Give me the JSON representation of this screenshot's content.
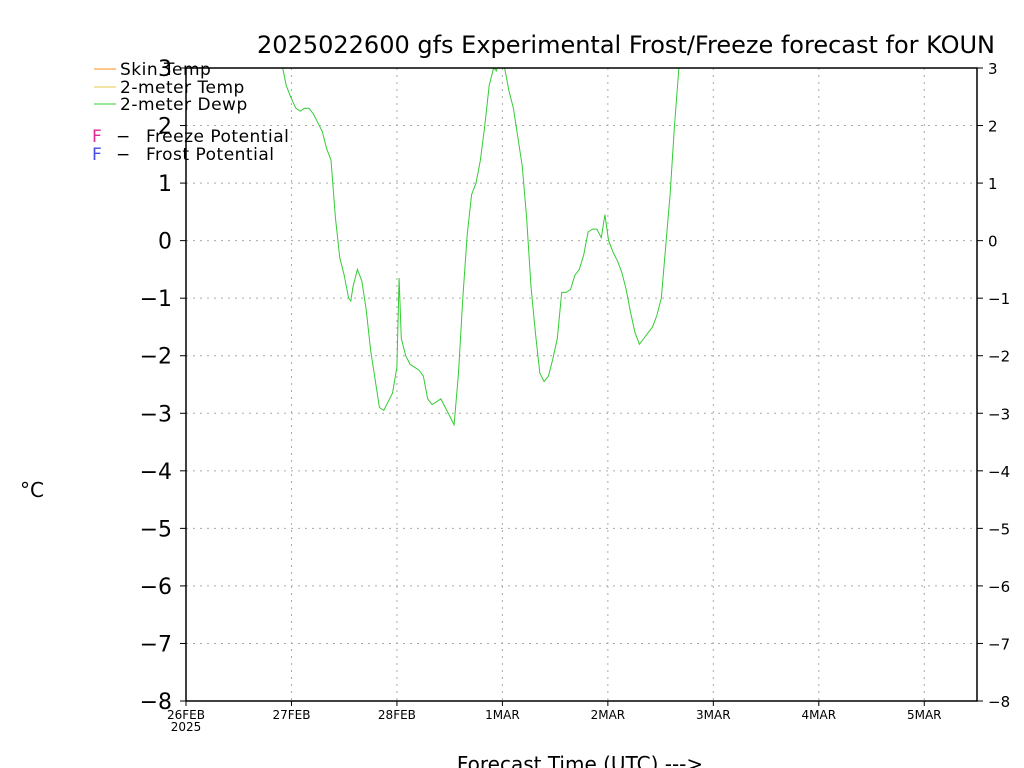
{
  "chart_data": {
    "type": "line",
    "title": "2025022600 gfs Experimental Frost/Freeze forecast for KOUN",
    "ylabel": "°C",
    "xlabel": "Forecast Time (UTC) --->",
    "ylim": [
      -8,
      3
    ],
    "xlim": [
      "2025-02-26T00",
      "2025-03-05T12"
    ],
    "grid": true,
    "legend_position": "top-left",
    "y_ticks": [
      -8,
      -7,
      -6,
      -5,
      -4,
      -3,
      -2,
      -1,
      0,
      1,
      2,
      3
    ],
    "y_tick_labels": [
      "−8",
      "−7",
      "−6",
      "−5",
      "−4",
      "−3",
      "−2",
      "−1",
      "0",
      "1",
      "2",
      "3"
    ],
    "x_ticks": [
      {
        "date": "2025-02-26",
        "label": "26FEB",
        "sublabel": "2025"
      },
      {
        "date": "2025-02-27",
        "label": "27FEB",
        "sublabel": ""
      },
      {
        "date": "2025-02-28",
        "label": "28FEB",
        "sublabel": ""
      },
      {
        "date": "2025-03-01",
        "label": "1MAR",
        "sublabel": ""
      },
      {
        "date": "2025-03-02",
        "label": "2MAR",
        "sublabel": ""
      },
      {
        "date": "2025-03-03",
        "label": "3MAR",
        "sublabel": ""
      },
      {
        "date": "2025-03-04",
        "label": "4MAR",
        "sublabel": ""
      },
      {
        "date": "2025-03-05",
        "label": "5MAR",
        "sublabel": ""
      }
    ],
    "legend": [
      {
        "label": "Skin Temp",
        "color": "#ff8c1a",
        "kind": "line"
      },
      {
        "label": "2-meter Temp",
        "color": "#e6c84a",
        "kind": "line"
      },
      {
        "label": "2-meter Dewp",
        "color": "#33cc33",
        "kind": "line"
      },
      {
        "label": "Freeze Potential",
        "marker": "F",
        "color": "#e0288e",
        "kind": "marker"
      },
      {
        "label": "Frost Potential",
        "marker": "F",
        "color": "#4a4ae6",
        "kind": "marker"
      }
    ],
    "series": [
      {
        "name": "2-meter Dewp",
        "color": "#33cc33",
        "points": [
          [
            "2025-02-26T22:00",
            3.0
          ],
          [
            "2025-02-26T22:48",
            2.7
          ],
          [
            "2025-02-26T23:48",
            2.5
          ],
          [
            "2025-02-27T01:00",
            2.3
          ],
          [
            "2025-02-27T02:00",
            2.25
          ],
          [
            "2025-02-27T03:00",
            2.3
          ],
          [
            "2025-02-27T04:00",
            2.3
          ],
          [
            "2025-02-27T05:00",
            2.2
          ],
          [
            "2025-02-27T06:00",
            2.05
          ],
          [
            "2025-02-27T07:00",
            1.9
          ],
          [
            "2025-02-27T08:00",
            1.6
          ],
          [
            "2025-02-27T09:00",
            1.4
          ],
          [
            "2025-02-27T10:00",
            0.4
          ],
          [
            "2025-02-27T11:00",
            -0.3
          ],
          [
            "2025-02-27T12:00",
            -0.6
          ],
          [
            "2025-02-27T13:00",
            -1.0
          ],
          [
            "2025-02-27T13:30",
            -1.05
          ],
          [
            "2025-02-27T14:00",
            -0.8
          ],
          [
            "2025-02-27T15:00",
            -0.5
          ],
          [
            "2025-02-27T16:00",
            -0.7
          ],
          [
            "2025-02-27T17:00",
            -1.2
          ],
          [
            "2025-02-27T18:00",
            -1.9
          ],
          [
            "2025-02-27T19:00",
            -2.4
          ],
          [
            "2025-02-27T20:00",
            -2.9
          ],
          [
            "2025-02-27T21:00",
            -2.95
          ],
          [
            "2025-02-27T22:00",
            -2.8
          ],
          [
            "2025-02-27T23:00",
            -2.65
          ],
          [
            "2025-02-28T00:00",
            -2.2
          ],
          [
            "2025-02-28T00:30",
            -0.65
          ],
          [
            "2025-02-28T01:00",
            -1.7
          ],
          [
            "2025-02-28T02:00",
            -2.0
          ],
          [
            "2025-02-28T03:00",
            -2.15
          ],
          [
            "2025-02-28T04:00",
            -2.2
          ],
          [
            "2025-02-28T05:00",
            -2.25
          ],
          [
            "2025-02-28T06:00",
            -2.35
          ],
          [
            "2025-02-28T07:00",
            -2.75
          ],
          [
            "2025-02-28T08:00",
            -2.85
          ],
          [
            "2025-02-28T09:00",
            -2.8
          ],
          [
            "2025-02-28T10:00",
            -2.75
          ],
          [
            "2025-02-28T11:00",
            -2.9
          ],
          [
            "2025-02-28T12:00",
            -3.05
          ],
          [
            "2025-02-28T13:00",
            -3.2
          ],
          [
            "2025-02-28T14:00",
            -2.3
          ],
          [
            "2025-02-28T15:00",
            -1.0
          ],
          [
            "2025-02-28T16:00",
            0.1
          ],
          [
            "2025-02-28T17:00",
            0.8
          ],
          [
            "2025-02-28T18:00",
            1.0
          ],
          [
            "2025-02-28T19:00",
            1.4
          ],
          [
            "2025-02-28T20:00",
            2.0
          ],
          [
            "2025-02-28T21:00",
            2.7
          ],
          [
            "2025-02-28T22:00",
            3.0
          ],
          [
            "2025-02-28T22:40",
            2.95
          ],
          [
            "2025-02-28T23:20",
            3.2
          ],
          [
            "2025-03-01T00:30",
            3.0
          ],
          [
            "2025-03-01T01:30",
            2.6
          ],
          [
            "2025-03-01T02:30",
            2.3
          ],
          [
            "2025-03-01T03:30",
            1.8
          ],
          [
            "2025-03-01T04:30",
            1.3
          ],
          [
            "2025-03-01T05:30",
            0.4
          ],
          [
            "2025-03-01T06:30",
            -0.8
          ],
          [
            "2025-03-01T07:30",
            -1.6
          ],
          [
            "2025-03-01T08:30",
            -2.3
          ],
          [
            "2025-03-01T09:30",
            -2.45
          ],
          [
            "2025-03-01T10:30",
            -2.35
          ],
          [
            "2025-03-01T11:30",
            -2.05
          ],
          [
            "2025-03-01T12:30",
            -1.7
          ],
          [
            "2025-03-01T13:30",
            -0.9
          ],
          [
            "2025-03-01T14:30",
            -0.9
          ],
          [
            "2025-03-01T15:30",
            -0.85
          ],
          [
            "2025-03-01T16:30",
            -0.6
          ],
          [
            "2025-03-01T17:30",
            -0.5
          ],
          [
            "2025-03-01T18:30",
            -0.25
          ],
          [
            "2025-03-01T19:30",
            0.15
          ],
          [
            "2025-03-01T20:30",
            0.2
          ],
          [
            "2025-03-01T21:30",
            0.2
          ],
          [
            "2025-03-01T22:30",
            0.05
          ],
          [
            "2025-03-01T23:20",
            0.45
          ],
          [
            "2025-03-02T00:10",
            0.0
          ],
          [
            "2025-03-02T01:10",
            -0.2
          ],
          [
            "2025-03-02T02:10",
            -0.35
          ],
          [
            "2025-03-02T03:10",
            -0.55
          ],
          [
            "2025-03-02T04:10",
            -0.85
          ],
          [
            "2025-03-02T05:10",
            -1.25
          ],
          [
            "2025-03-02T06:10",
            -1.6
          ],
          [
            "2025-03-02T07:10",
            -1.8
          ],
          [
            "2025-03-02T08:10",
            -1.7
          ],
          [
            "2025-03-02T09:10",
            -1.6
          ],
          [
            "2025-03-02T10:10",
            -1.5
          ],
          [
            "2025-03-02T11:10",
            -1.3
          ],
          [
            "2025-03-02T12:10",
            -1.0
          ],
          [
            "2025-03-02T13:10",
            -0.1
          ],
          [
            "2025-03-02T14:10",
            0.8
          ],
          [
            "2025-03-02T15:10",
            2.0
          ],
          [
            "2025-03-02T16:10",
            3.0
          ]
        ]
      }
    ]
  }
}
